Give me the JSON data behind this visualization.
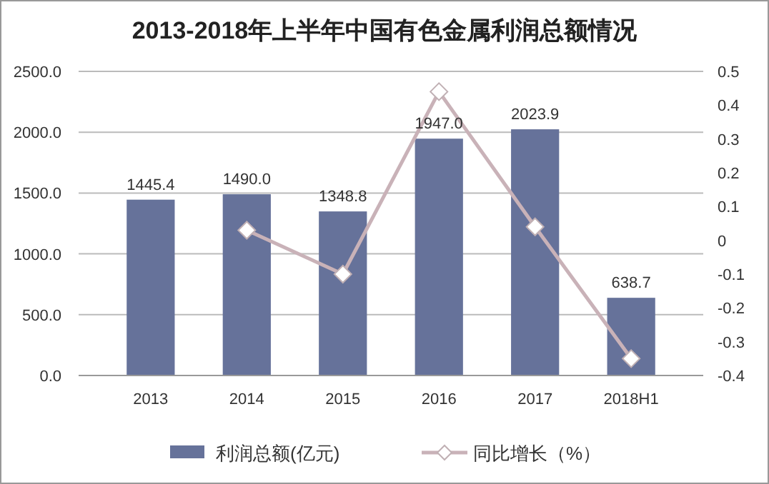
{
  "chart_data": {
    "type": "bar",
    "title": "2013-2018年上半年中国有色金属利润总额情况",
    "categories": [
      "2013",
      "2014",
      "2015",
      "2016",
      "2017",
      "2018H1"
    ],
    "series": [
      {
        "name": "利润总额(亿元)",
        "color": "#66729a",
        "values": [
          1445.4,
          1490.0,
          1348.8,
          1947.0,
          2023.9,
          638.7
        ]
      },
      {
        "name": "同比增长（%）",
        "type": "line",
        "axis": "y2",
        "color": "#c9b2b8",
        "marker": "diamond",
        "values": [
          null,
          0.03,
          -0.1,
          0.44,
          0.04,
          -0.35
        ]
      }
    ],
    "value_labels": [
      "1445.4",
      "1490.0",
      "1348.8",
      "1947.0",
      "2023.9",
      "638.7"
    ],
    "ylim": [
      0,
      2500
    ],
    "yticks": [
      {
        "value": 0,
        "label": "0.0"
      },
      {
        "value": 500,
        "label": "500.0"
      },
      {
        "value": 1000,
        "label": "1000.0"
      },
      {
        "value": 1500,
        "label": "1500.0"
      },
      {
        "value": 2000,
        "label": "2000.0"
      },
      {
        "value": 2500,
        "label": "2500.0"
      }
    ],
    "y2lim": [
      -0.4,
      0.5
    ],
    "y2ticks": [
      -0.4,
      -0.3,
      -0.2,
      -0.1,
      0,
      0.1,
      0.2,
      0.3,
      0.4,
      0.5
    ],
    "grid": "y",
    "legend": "bottom"
  }
}
